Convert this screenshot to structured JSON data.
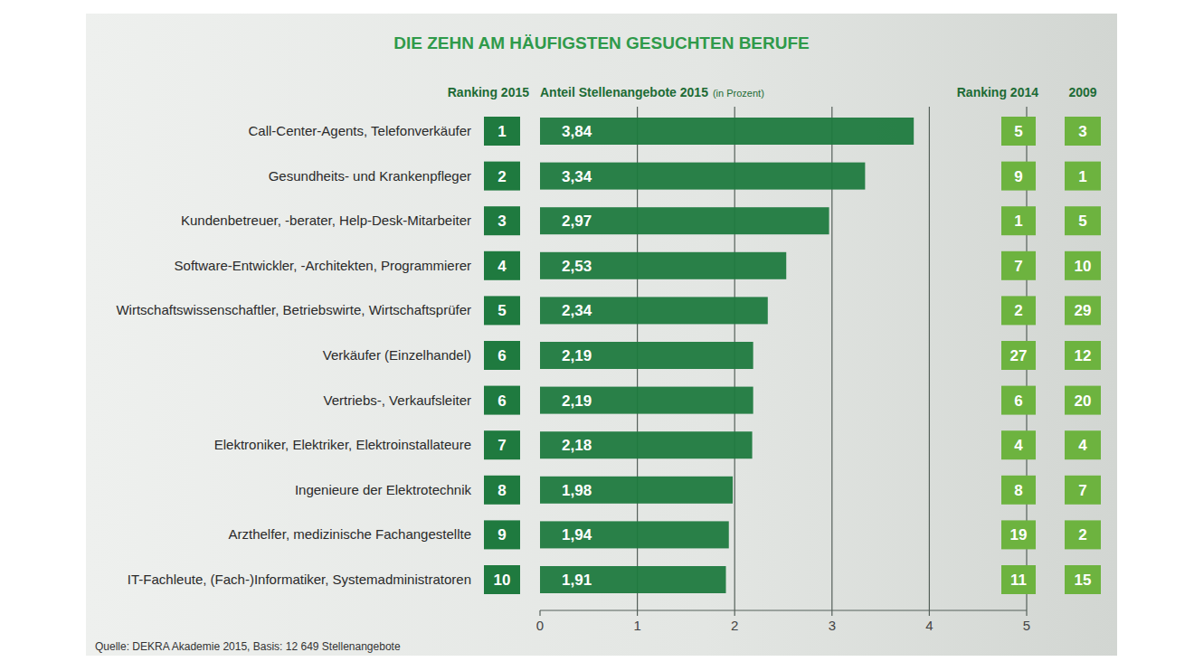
{
  "chart_data": {
    "type": "bar",
    "orientation": "horizontal",
    "title": "DIE ZEHN AM HÄUFIGSTEN GESUCHTEN BERUFE",
    "headers": {
      "rank_2015": "Ranking 2015",
      "values": "Anteil Stellenangebote 2015",
      "values_unit": "(in Prozent)",
      "rank_2014": "Ranking 2014",
      "rank_2009": "2009"
    },
    "categories": [
      "Call-Center-Agents, Telefonverkäufer",
      "Gesundheits- und Krankenpfleger",
      "Kundenbetreuer, -berater, Help-Desk-Mitarbeiter",
      "Software-Entwickler, -Architekten, Programmierer",
      "Wirtschaftswissenschaftler, Betriebswirte, Wirtschaftsprüfer",
      "Verkäufer (Einzelhandel)",
      "Vertriebs-, Verkaufsleiter",
      "Elektroniker, Elektriker, Elektroinstallateure",
      "Ingenieure der Elektrotechnik",
      "Arzthelfer, medizinische Fachangestellte",
      "IT-Fachleute, (Fach-)Informatiker, Systemadministratoren"
    ],
    "values": [
      3.84,
      3.34,
      2.97,
      2.53,
      2.34,
      2.19,
      2.19,
      2.18,
      1.98,
      1.94,
      1.91
    ],
    "value_labels": [
      "3,84",
      "3,34",
      "2,97",
      "2,53",
      "2,34",
      "2,19",
      "2,19",
      "2,18",
      "1,98",
      "1,94",
      "1,91"
    ],
    "rank_2015": [
      1,
      2,
      3,
      4,
      5,
      6,
      6,
      7,
      8,
      9,
      10
    ],
    "rank_2014": [
      5,
      9,
      1,
      7,
      2,
      27,
      6,
      4,
      8,
      19,
      11
    ],
    "rank_2009": [
      3,
      1,
      5,
      10,
      29,
      12,
      20,
      4,
      7,
      2,
      15
    ],
    "color": "#1f7a3f",
    "xlim": [
      0,
      5
    ],
    "xticks": [
      0,
      1,
      2,
      3,
      4,
      5
    ],
    "grid": true,
    "data_labels": true,
    "source": "Quelle: DEKRA Akademie 2015, Basis: 12 649 Stellenangebote"
  }
}
